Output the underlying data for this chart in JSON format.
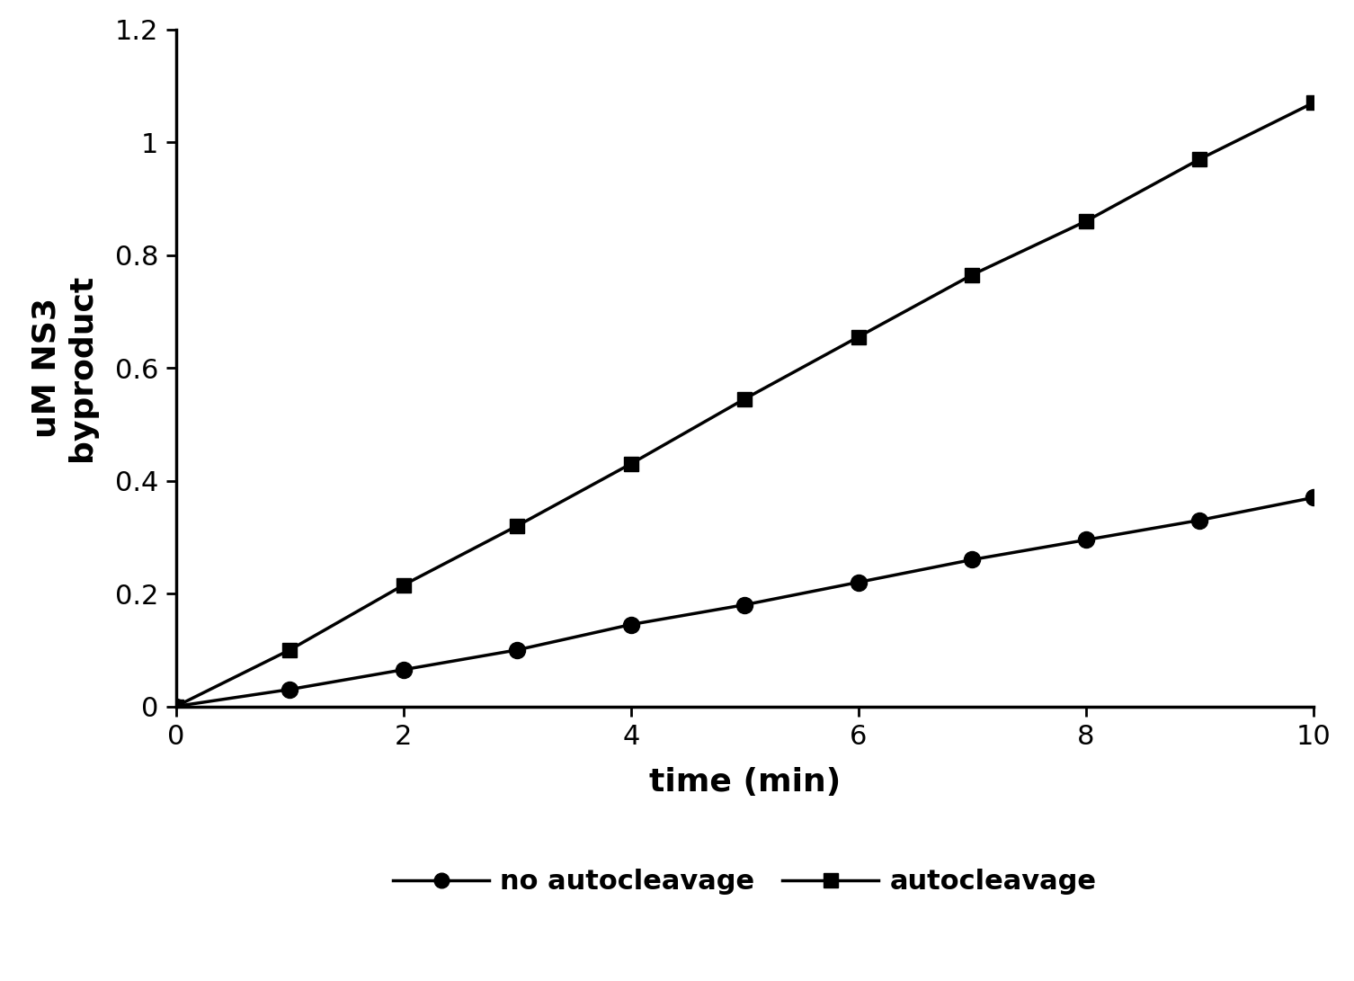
{
  "x": [
    0,
    1,
    2,
    3,
    4,
    5,
    6,
    7,
    8,
    9,
    10
  ],
  "no_autocleavage": [
    0.0,
    0.03,
    0.065,
    0.1,
    0.145,
    0.18,
    0.22,
    0.26,
    0.295,
    0.33,
    0.37
  ],
  "autocleavage": [
    0.0,
    0.1,
    0.215,
    0.32,
    0.43,
    0.545,
    0.655,
    0.765,
    0.86,
    0.97,
    1.07
  ],
  "line_color": "#000000",
  "ylabel_line1": "uM NS3",
  "ylabel_line2": "byproduct",
  "xlabel": "time (min)",
  "legend_no_auto": "no autocleavage",
  "legend_auto": "autocleavage",
  "ylim": [
    0,
    1.2
  ],
  "xlim": [
    0,
    10
  ],
  "yticks": [
    0.0,
    0.2,
    0.4,
    0.6,
    0.8,
    1.0,
    1.2
  ],
  "xticks": [
    0,
    2,
    4,
    6,
    8,
    10
  ],
  "background_color": "#ffffff",
  "linewidth": 2.5,
  "markersize_circle": 13,
  "markersize_square": 12,
  "tick_fontsize": 22,
  "label_fontsize": 26,
  "legend_fontsize": 22
}
